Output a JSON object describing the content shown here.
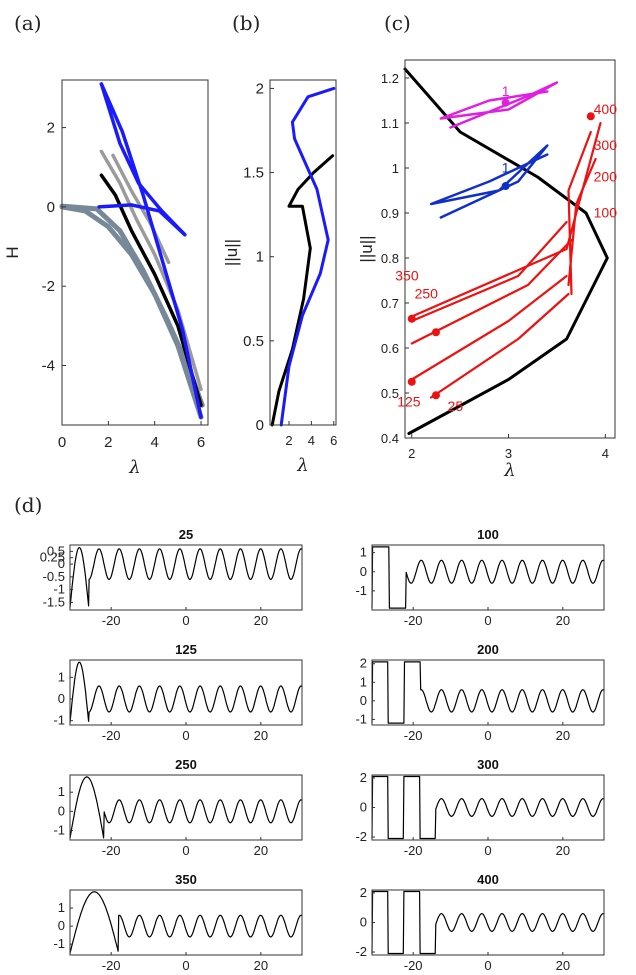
{
  "panel_labels": [
    "(a)",
    "(b)",
    "(c)",
    "(d)"
  ],
  "colors": {
    "black": "#000000",
    "blue": "#1a1aff",
    "grey": "#778899",
    "lightgrey": "#9b9b9b",
    "magenta": "#e020e0",
    "darkblue": "#1030c8",
    "red": "#ee1111"
  },
  "chart_data": [
    {
      "panel": "a",
      "type": "line",
      "xlabel": "λ",
      "ylabel": "H",
      "xlim": [
        0,
        6.3
      ],
      "ylim": [
        -5.5,
        3.2
      ],
      "xticks": [
        "0",
        "2",
        "4",
        "6"
      ],
      "yticks": [
        "2",
        "0",
        "-2",
        "-4"
      ],
      "series": [
        {
          "color": "#778899",
          "points": [
            [
              0,
              0
            ],
            [
              1,
              -0.1
            ],
            [
              2,
              -0.5
            ],
            [
              3,
              -1.2
            ],
            [
              4,
              -2.2
            ],
            [
              5,
              -3.5
            ],
            [
              6,
              -5.3
            ]
          ]
        },
        {
          "color": "#778899",
          "points": [
            [
              0,
              0.02
            ],
            [
              1.5,
              -0.05
            ],
            [
              2.5,
              -0.6
            ],
            [
              3.5,
              -1.6
            ],
            [
              4.5,
              -2.8
            ],
            [
              5.5,
              -4.1
            ],
            [
              6.05,
              -5.0
            ]
          ]
        },
        {
          "color": "#9b9b9b",
          "points": [
            [
              1.7,
              1.4
            ],
            [
              2.5,
              0.6
            ],
            [
              3.2,
              -0.3
            ],
            [
              4,
              -1.2
            ],
            [
              5,
              -2.6
            ],
            [
              6,
              -4.6
            ]
          ]
        },
        {
          "color": "#9b9b9b",
          "points": [
            [
              2.2,
              1.3
            ],
            [
              3,
              0.4
            ],
            [
              3.8,
              -0.4
            ],
            [
              4.6,
              -1.4
            ]
          ]
        },
        {
          "color": "#000000",
          "points": [
            [
              1.7,
              0.8
            ],
            [
              2.3,
              0.3
            ],
            [
              3,
              -0.6
            ],
            [
              4,
              -1.7
            ],
            [
              5,
              -3.0
            ],
            [
              6,
              -5.0
            ]
          ]
        },
        {
          "color": "#1a1aff",
          "points": [
            [
              1.7,
              3.1
            ],
            [
              2.6,
              1.9
            ],
            [
              3.5,
              0.3
            ],
            [
              4.3,
              -1.3
            ],
            [
              5.2,
              -3.1
            ],
            [
              6,
              -5.3
            ]
          ]
        },
        {
          "color": "#1a1aff",
          "points": [
            [
              1.7,
              3.1
            ],
            [
              2.5,
              1.6
            ],
            [
              3.3,
              0.6
            ],
            [
              4.3,
              -0.1
            ],
            [
              5.3,
              -0.7
            ]
          ]
        },
        {
          "color": "#1a1aff",
          "points": [
            [
              1.6,
              0
            ],
            [
              3,
              0.05
            ],
            [
              4.2,
              -0.1
            ],
            [
              5.3,
              -0.7
            ]
          ]
        }
      ]
    },
    {
      "panel": "b",
      "type": "line",
      "xlabel": "λ",
      "ylabel": "||u||",
      "xlim": [
        0.3,
        6.2
      ],
      "ylim": [
        0,
        2.05
      ],
      "xticks": [
        "2",
        "4",
        "6"
      ],
      "yticks": [
        "0",
        "0.5",
        "1",
        "1.5",
        "2"
      ],
      "series": [
        {
          "color": "#000000",
          "points": [
            [
              0.5,
              0
            ],
            [
              1.1,
              0.2
            ],
            [
              2.3,
              0.45
            ],
            [
              3.3,
              0.75
            ],
            [
              3.9,
              1.05
            ],
            [
              3.2,
              1.3
            ],
            [
              2,
              1.3
            ],
            [
              2.8,
              1.4
            ],
            [
              4.2,
              1.5
            ],
            [
              5.9,
              1.6
            ]
          ]
        },
        {
          "color": "#1a1aff",
          "points": [
            [
              1.3,
              0
            ],
            [
              2,
              0.35
            ],
            [
              3.2,
              0.65
            ],
            [
              4.8,
              0.9
            ],
            [
              5.5,
              1.1
            ],
            [
              4.5,
              1.4
            ],
            [
              2.5,
              1.7
            ],
            [
              2.3,
              1.8
            ],
            [
              3.7,
              1.95
            ],
            [
              6,
              2.0
            ]
          ]
        }
      ]
    },
    {
      "panel": "c",
      "type": "line",
      "xlabel": "λ",
      "ylabel": "||u||",
      "xlim": [
        1.93,
        4.1
      ],
      "ylim": [
        0.4,
        1.24
      ],
      "xticks": [
        "2",
        "3",
        "4"
      ],
      "yticks": [
        "0.4",
        "0.5",
        "0.6",
        "0.7",
        "0.8",
        "0.9",
        "1",
        "1.1",
        "1.2"
      ],
      "annotations": [
        {
          "text": "1",
          "color": "#e020e0",
          "x": 2.97,
          "y": 1.16
        },
        {
          "text": "1",
          "color": "#1030c8",
          "x": 2.97,
          "y": 0.99
        },
        {
          "text": "400",
          "color": "#ee1111",
          "x": 4.0,
          "y": 1.12
        },
        {
          "text": "300",
          "color": "#ee1111",
          "x": 4.0,
          "y": 1.04
        },
        {
          "text": "200",
          "color": "#ee1111",
          "x": 4.0,
          "y": 0.97
        },
        {
          "text": "100",
          "color": "#ee1111",
          "x": 4.0,
          "y": 0.89
        },
        {
          "text": "350",
          "color": "#ee1111",
          "x": 1.95,
          "y": 0.75
        },
        {
          "text": "250",
          "color": "#ee1111",
          "x": 2.15,
          "y": 0.71
        },
        {
          "text": "125",
          "color": "#ee1111",
          "x": 1.97,
          "y": 0.47
        },
        {
          "text": "25",
          "color": "#ee1111",
          "x": 2.45,
          "y": 0.46
        }
      ]
    },
    {
      "panel": "d",
      "type": "line",
      "title": "25",
      "xticks": [
        "-20",
        "0",
        "20"
      ],
      "yticks": [
        "0.5",
        "0.25",
        "0",
        "-0.5",
        "-1",
        "-1.5"
      ],
      "ylim": [
        -1.8,
        0.75
      ]
    },
    {
      "panel": "d",
      "type": "line",
      "title": "100",
      "xticks": [
        "-20",
        "0",
        "20"
      ],
      "yticks": [
        "1",
        "0",
        "-1"
      ],
      "ylim": [
        -2,
        1.4
      ]
    },
    {
      "panel": "d",
      "type": "line",
      "title": "125",
      "xticks": [
        "-20",
        "0",
        "20"
      ],
      "yticks": [
        "1",
        "0",
        "-1"
      ],
      "ylim": [
        -1.2,
        1.8
      ]
    },
    {
      "panel": "d",
      "type": "line",
      "title": "200",
      "xticks": [
        "-20",
        "0",
        "20"
      ],
      "yticks": [
        "2",
        "1",
        "0",
        "-1"
      ],
      "ylim": [
        -1.3,
        2.2
      ]
    },
    {
      "panel": "d",
      "type": "line",
      "title": "250",
      "xticks": [
        "-20",
        "0",
        "20"
      ],
      "yticks": [
        "1",
        "0",
        "-1"
      ],
      "ylim": [
        -1.5,
        1.9
      ]
    },
    {
      "panel": "d",
      "type": "line",
      "title": "300",
      "xticks": [
        "-20",
        "0",
        "20"
      ],
      "yticks": [
        "2",
        "0",
        "-2"
      ],
      "ylim": [
        -2.2,
        2.2
      ]
    },
    {
      "panel": "d",
      "type": "line",
      "title": "350",
      "xticks": [
        "-20",
        "0",
        "20"
      ],
      "yticks": [
        "1",
        "0",
        "-1"
      ],
      "ylim": [
        -1.6,
        2.0
      ]
    },
    {
      "panel": "d",
      "type": "line",
      "title": "400",
      "xticks": [
        "-20",
        "0",
        "20"
      ],
      "yticks": [
        "2",
        "0",
        "-2"
      ],
      "ylim": [
        -2.2,
        2.2
      ]
    }
  ]
}
